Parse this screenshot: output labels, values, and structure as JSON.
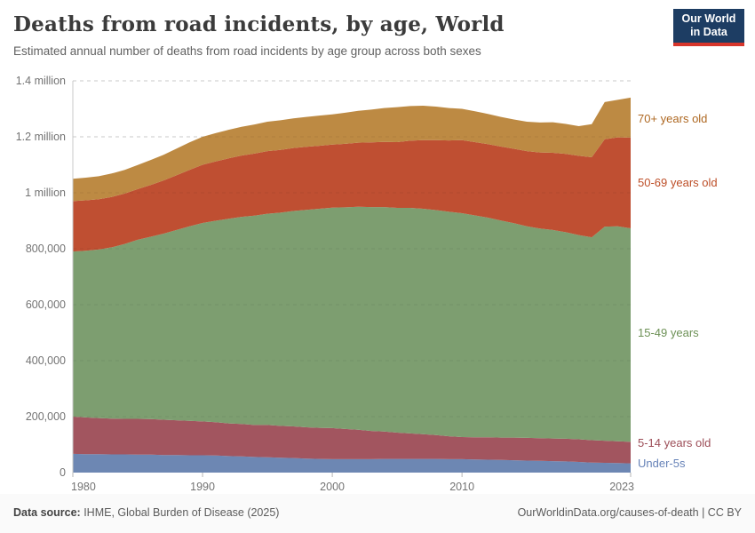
{
  "header": {
    "title": "Deaths from road incidents, by age, World",
    "subtitle": "Estimated annual number of deaths from road incidents by age group across both sexes"
  },
  "logo": {
    "line1": "Our World",
    "line2": "in Data",
    "bg_color": "#1d3d63",
    "bar_color": "#d7352b"
  },
  "footer": {
    "source_label": "Data source:",
    "source_value": " IHME, Global Burden of Disease (2025)",
    "credit": "OurWorldinData.org/causes-of-death | CC BY"
  },
  "chart_data": {
    "type": "area",
    "stacked": true,
    "title": "Deaths from road incidents, by age, World",
    "subtitle": "Estimated annual number of deaths from road incidents by age group across both sexes",
    "xlabel": "",
    "ylabel": "",
    "grid": true,
    "legend_position": "right-of-plot",
    "ylim": [
      0,
      1400000
    ],
    "x": [
      1980,
      1981,
      1982,
      1983,
      1984,
      1985,
      1986,
      1987,
      1988,
      1989,
      1990,
      1991,
      1992,
      1993,
      1994,
      1995,
      1996,
      1997,
      1998,
      1999,
      2000,
      2001,
      2002,
      2003,
      2004,
      2005,
      2006,
      2007,
      2008,
      2009,
      2010,
      2011,
      2012,
      2013,
      2014,
      2015,
      2016,
      2017,
      2018,
      2019,
      2020,
      2021,
      2022,
      2023
    ],
    "x_ticks": [
      {
        "value": 1980,
        "label": "1980"
      },
      {
        "value": 1990,
        "label": "1990"
      },
      {
        "value": 2000,
        "label": "2000"
      },
      {
        "value": 2010,
        "label": "2010"
      },
      {
        "value": 2023,
        "label": "2023"
      }
    ],
    "y_ticks": [
      {
        "value": 0,
        "label": "0"
      },
      {
        "value": 200000,
        "label": "200,000"
      },
      {
        "value": 400000,
        "label": "400,000"
      },
      {
        "value": 600000,
        "label": "600,000"
      },
      {
        "value": 800000,
        "label": "800,000"
      },
      {
        "value": 1000000,
        "label": "1 million"
      },
      {
        "value": 1200000,
        "label": "1.2 million"
      },
      {
        "value": 1400000,
        "label": "1.4 million"
      }
    ],
    "series": [
      {
        "key": "under-5s",
        "label": "Under-5s",
        "color": "#6d87b3",
        "label_color": "#6783b8",
        "values": [
          67000,
          66000,
          66000,
          65000,
          65000,
          64000,
          64000,
          63000,
          63000,
          62000,
          62000,
          61000,
          59000,
          58000,
          56000,
          55000,
          53000,
          52000,
          50000,
          49000,
          48000,
          48000,
          48000,
          48000,
          49000,
          49000,
          49000,
          49000,
          49000,
          48000,
          48000,
          47000,
          46000,
          45000,
          44000,
          43000,
          42000,
          41000,
          40000,
          38000,
          36000,
          35000,
          34000,
          33000
        ]
      },
      {
        "key": "5-14-years",
        "label": "5-14 years old",
        "color": "#a2555f",
        "label_color": "#9d4e58",
        "values": [
          133000,
          131000,
          129000,
          128000,
          127000,
          128000,
          127000,
          126000,
          124000,
          123000,
          121000,
          119000,
          117000,
          116000,
          114000,
          115000,
          114000,
          113000,
          112000,
          111000,
          111000,
          108000,
          105000,
          101000,
          98000,
          94000,
          91000,
          88000,
          85000,
          82000,
          79000,
          79000,
          80000,
          80000,
          81000,
          81000,
          81000,
          81000,
          81000,
          81000,
          80000,
          79000,
          78000,
          77000
        ]
      },
      {
        "key": "15-49-years",
        "label": "15-49 years",
        "color": "#7d9e70",
        "label_color": "#6d9156",
        "values": [
          590000,
          596000,
          602000,
          612000,
          625000,
          640000,
          652000,
          665000,
          680000,
          695000,
          709000,
          720000,
          731000,
          740000,
          748000,
          755000,
          762000,
          770000,
          777000,
          783000,
          788000,
          792000,
          797000,
          800000,
          802000,
          803000,
          806000,
          806000,
          804000,
          802000,
          800000,
          793000,
          785000,
          776000,
          766000,
          756000,
          749000,
          745000,
          738000,
          730000,
          725000,
          765000,
          768000,
          763000
        ]
      },
      {
        "key": "50-69-years",
        "label": "50-69 years old",
        "color": "#bf4f32",
        "label_color": "#bd4e27",
        "values": [
          180000,
          180000,
          180000,
          180000,
          180000,
          181000,
          185000,
          190000,
          196000,
          202000,
          208000,
          212000,
          216000,
          219000,
          222000,
          224000,
          224000,
          225000,
          225000,
          225000,
          225000,
          227000,
          229000,
          231000,
          233000,
          235000,
          240000,
          245000,
          250000,
          255000,
          261000,
          262000,
          263000,
          264000,
          266000,
          269000,
          272000,
          276000,
          280000,
          283000,
          286000,
          312000,
          318000,
          324000
        ]
      },
      {
        "key": "70-plus-years",
        "label": "70+ years old",
        "color": "#bd8a43",
        "label_color": "#ae6822",
        "values": [
          80000,
          81000,
          82000,
          84000,
          85000,
          86000,
          89000,
          92000,
          95000,
          98000,
          100000,
          101000,
          102000,
          103000,
          104000,
          105000,
          106000,
          106000,
          107000,
          108000,
          108000,
          111000,
          114000,
          117000,
          121000,
          125000,
          124000,
          123000,
          120000,
          116000,
          112000,
          110000,
          108000,
          106000,
          105000,
          105000,
          107000,
          109000,
          107000,
          106000,
          118000,
          133000,
          134000,
          143000
        ]
      }
    ]
  }
}
